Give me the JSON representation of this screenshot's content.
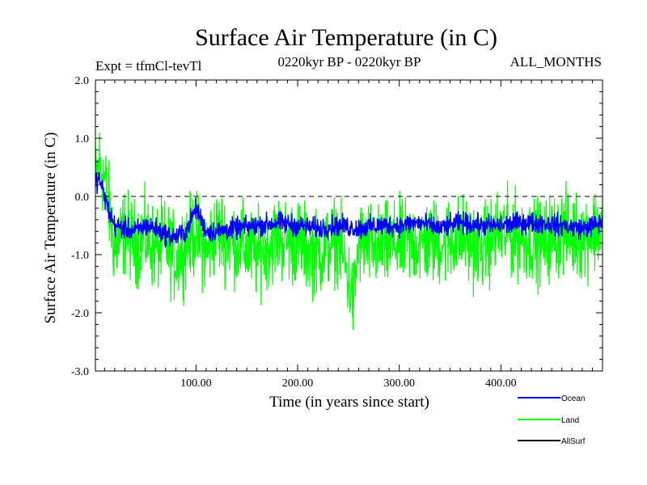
{
  "header": {
    "title": "Surface Air Temperature (in C)",
    "expt": "Expt = tfmCl-tevTl",
    "period": "0220kyr BP - 0220kyr BP",
    "months": "ALL_MONTHS"
  },
  "chart_data": {
    "type": "line",
    "title": "Surface Air Temperature (in C)",
    "xlabel": "Time (in years since start)",
    "ylabel": "Surface Air Temperature (in C)",
    "xlim": [
      1,
      500
    ],
    "ylim": [
      -3.0,
      2.0
    ],
    "x_ticks": [
      100,
      200,
      300,
      400
    ],
    "x_tick_labels": [
      "100.00",
      "200.00",
      "300.00",
      "400.00"
    ],
    "y_ticks": [
      2.0,
      1.0,
      0.0,
      -1.0,
      -2.0,
      -3.0
    ],
    "y_tick_labels": [
      "2.0",
      "1.0",
      "0.0",
      "-1.0",
      "-2.0",
      "-3.0"
    ],
    "reference_line": {
      "y": 0.0,
      "style": "dashed"
    },
    "grid": false,
    "legend_position": "bottom-right",
    "series": [
      {
        "name": "Land",
        "color": "#00ff00",
        "x": [
          1,
          5,
          10,
          20,
          30,
          40,
          50,
          60,
          70,
          80,
          90,
          100,
          110,
          120,
          140,
          160,
          180,
          200,
          220,
          240,
          255,
          260,
          280,
          300,
          320,
          340,
          360,
          380,
          400,
          420,
          440,
          460,
          480,
          500
        ],
        "values": [
          0.2,
          0.6,
          0.3,
          -0.9,
          -0.6,
          -0.8,
          -0.7,
          -0.9,
          -0.8,
          -1.1,
          -0.8,
          -0.6,
          -1.0,
          -0.6,
          -0.8,
          -1.0,
          -0.7,
          -0.8,
          -1.0,
          -0.7,
          -1.8,
          -0.8,
          -0.9,
          -0.8,
          -0.8,
          -0.8,
          -0.7,
          -0.9,
          -0.6,
          -0.7,
          -0.8,
          -0.6,
          -0.7,
          -0.5
        ],
        "range": [
          -2.85,
          1.15
        ]
      },
      {
        "name": "Ocean",
        "color": "#0000ff",
        "x": [
          1,
          5,
          10,
          15,
          20,
          30,
          40,
          50,
          60,
          70,
          80,
          90,
          100,
          110,
          120,
          140,
          160,
          180,
          200,
          220,
          240,
          260,
          280,
          300,
          320,
          340,
          360,
          380,
          400,
          420,
          440,
          460,
          480,
          500
        ],
        "values": [
          0.25,
          0.3,
          0.0,
          -0.3,
          -0.5,
          -0.55,
          -0.6,
          -0.5,
          -0.55,
          -0.65,
          -0.7,
          -0.6,
          -0.2,
          -0.6,
          -0.6,
          -0.55,
          -0.5,
          -0.45,
          -0.5,
          -0.55,
          -0.5,
          -0.55,
          -0.5,
          -0.5,
          -0.45,
          -0.55,
          -0.45,
          -0.5,
          -0.5,
          -0.45,
          -0.45,
          -0.5,
          -0.55,
          -0.45
        ],
        "range": [
          -1.2,
          0.45
        ]
      },
      {
        "name": "AllSurf",
        "color": "#000000",
        "x": [],
        "values": []
      }
    ]
  }
}
